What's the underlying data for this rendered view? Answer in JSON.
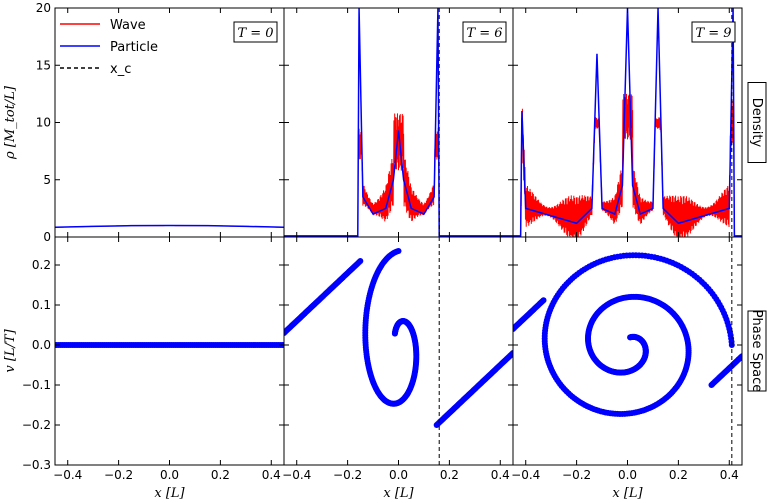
{
  "chart_data": {
    "type": "line",
    "layout": "2x3 panel grid, shared axes",
    "x": {
      "range": [
        -0.45,
        0.45
      ],
      "ticks": [
        -0.4,
        -0.2,
        0.0,
        0.2,
        0.4
      ],
      "tick_labels": [
        "−0.4",
        "−0.2",
        "0.0",
        "0.2",
        "0.4"
      ],
      "label": "x [L]"
    },
    "rows": [
      {
        "name": "Density",
        "ylabel": "ρ [M_tot/L]",
        "ylim": [
          0,
          20
        ],
        "ticks": [
          0,
          5,
          10,
          15,
          20
        ],
        "tick_labels": [
          "0",
          "5",
          "10",
          "15",
          "20"
        ]
      },
      {
        "name": "Phase Space",
        "ylabel": "v [L/T]",
        "ylim": [
          -0.3,
          0.27
        ],
        "ticks": [
          -0.3,
          -0.2,
          -0.1,
          0.0,
          0.1,
          0.2
        ],
        "tick_labels": [
          "−0.3",
          "−0.2",
          "−0.1",
          "0.0",
          "0.1",
          "0.2"
        ]
      }
    ],
    "panels": [
      {
        "time_label": "T = 0",
        "xc": null,
        "wave_density": {
          "x": [
            -0.45,
            -0.3,
            -0.15,
            0.0,
            0.15,
            0.3,
            0.45
          ],
          "y": [
            0.85,
            0.93,
            0.99,
            1.0,
            0.99,
            0.93,
            0.85
          ]
        },
        "particle_density": {
          "x": [
            -0.45,
            -0.3,
            -0.15,
            0.0,
            0.15,
            0.3,
            0.45
          ],
          "y": [
            0.85,
            0.93,
            0.99,
            1.0,
            0.99,
            0.93,
            0.85
          ]
        },
        "phase_space": {
          "description": "flat line v=0 across x",
          "amplitude": 0.0
        }
      },
      {
        "time_label": "T = 6",
        "xc": 0.16,
        "wave_density": {
          "support": [
            -0.16,
            0.16
          ],
          "mean_peak": 8.3,
          "oscillation_amplitude": 2.5,
          "edge_level": 1.5
        },
        "particle_density": {
          "x": [
            -0.45,
            -0.16,
            -0.155,
            -0.14,
            -0.1,
            -0.05,
            -0.02,
            0.0,
            0.02,
            0.05,
            0.1,
            0.14,
            0.155,
            0.16,
            0.45
          ],
          "y": [
            0.1,
            0.1,
            20.0,
            3.5,
            2.0,
            2.5,
            5.0,
            9.3,
            5.0,
            2.5,
            2.0,
            3.5,
            20.0,
            0.1,
            0.1
          ]
        },
        "phase_space": {
          "description": "single-wind spiral with linear tails",
          "vmax": 0.235,
          "tail_slope": 0.6
        }
      },
      {
        "time_label": "T = 9",
        "xc": 0.41,
        "wave_density": {
          "support": [
            -0.42,
            0.42
          ],
          "mean_peak": 10.5,
          "oscillation_amplitude": 2.0,
          "edge_level": 1.2
        },
        "particle_density": {
          "x": [
            -0.45,
            -0.42,
            -0.415,
            -0.4,
            -0.2,
            -0.14,
            -0.12,
            -0.1,
            -0.05,
            -0.02,
            0.0,
            0.02,
            0.05,
            0.1,
            0.12,
            0.14,
            0.2,
            0.4,
            0.415,
            0.42,
            0.45
          ],
          "y": [
            0.1,
            0.1,
            11.0,
            2.5,
            1.2,
            2.5,
            16.0,
            2.5,
            2.0,
            4.5,
            20.0,
            4.5,
            2.0,
            2.5,
            20.0,
            2.5,
            1.2,
            2.5,
            20.0,
            0.1,
            0.1
          ]
        },
        "phase_space": {
          "description": "double-wind spiral with dotted outer arms",
          "vmax": 0.25
        }
      }
    ],
    "legend": {
      "placement": "top-left of first density panel",
      "entries": [
        {
          "name": "Wave",
          "color": "#ff0000",
          "style": "solid"
        },
        {
          "name": "Particle",
          "color": "#0000ff",
          "style": "solid"
        },
        {
          "name": "x_c",
          "color": "#000000",
          "style": "dashed"
        }
      ]
    },
    "colors": {
      "wave": "#ff0000",
      "particle": "#0000ff",
      "xc": "#000000"
    }
  }
}
